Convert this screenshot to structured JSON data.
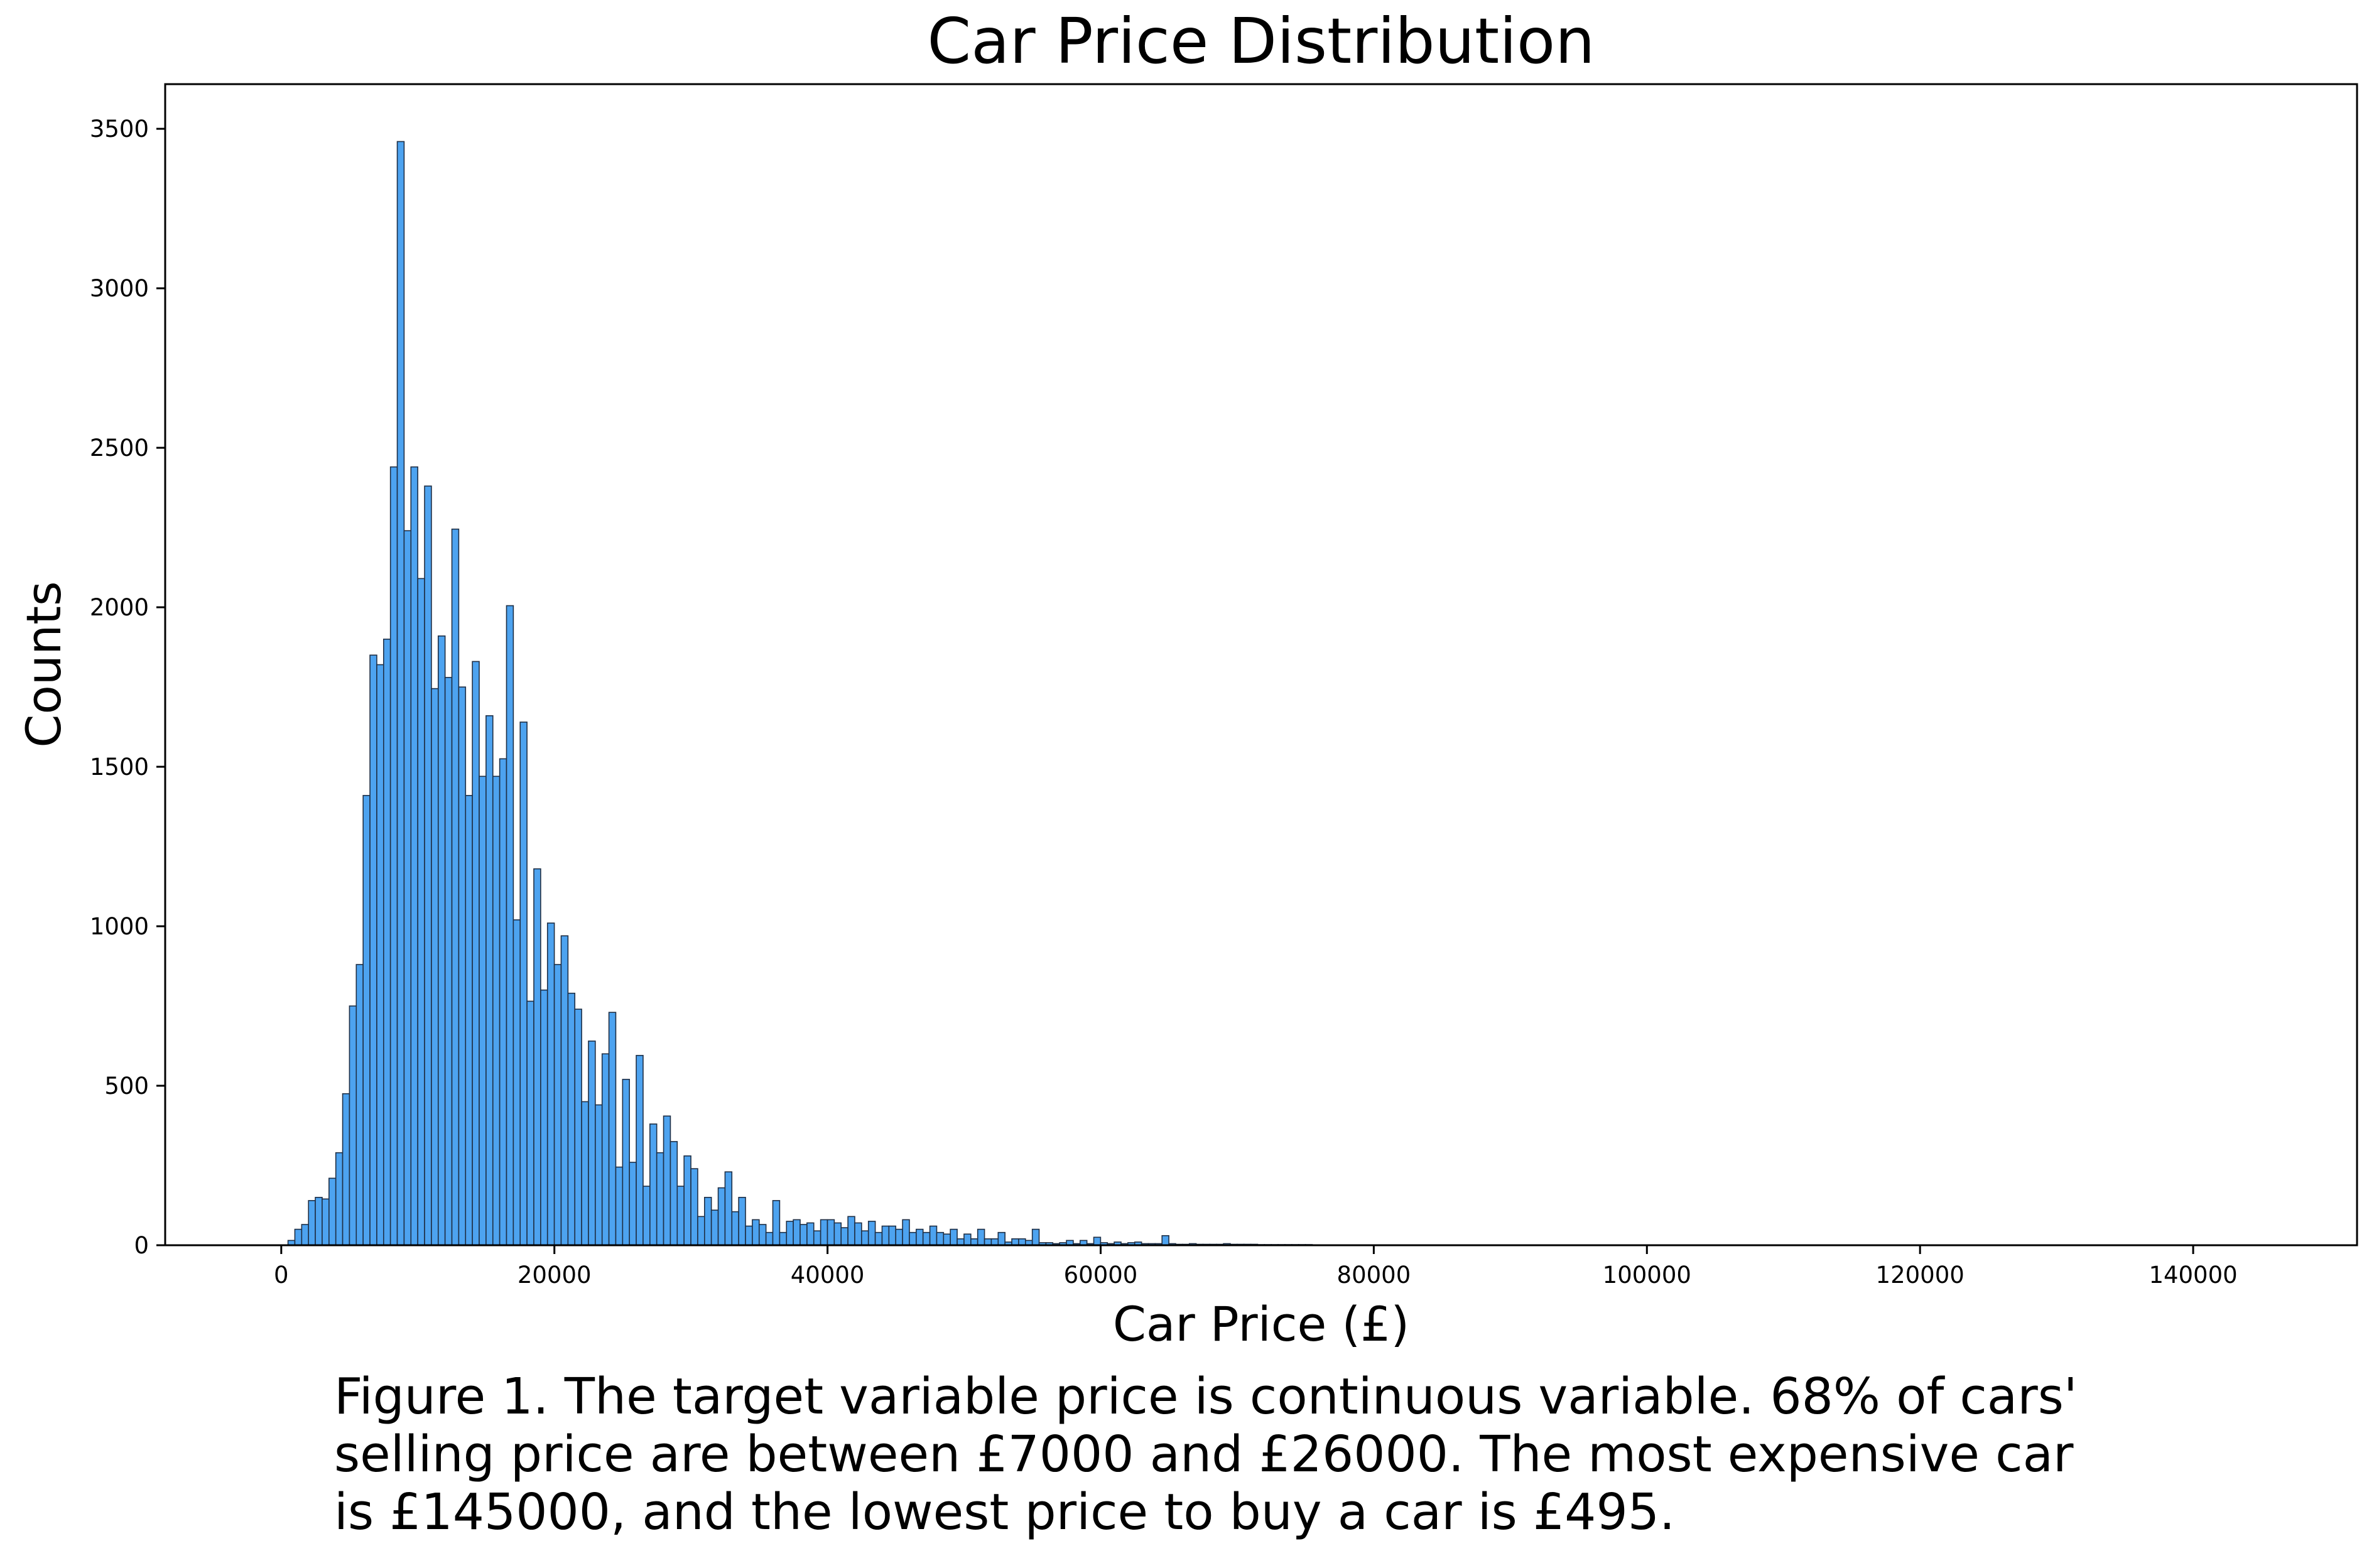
{
  "chart_data": {
    "type": "bar",
    "title": "Car Price Distribution",
    "xlabel": "Car Price (£)",
    "ylabel": "Counts",
    "xlim": [
      -8500,
      152000
    ],
    "ylim": [
      0,
      3640
    ],
    "xticks": [
      0,
      20000,
      40000,
      60000,
      80000,
      100000,
      120000,
      140000
    ],
    "xtick_labels": [
      "0",
      "20000",
      "40000",
      "60000",
      "80000",
      "100000",
      "120000",
      "140000"
    ],
    "yticks": [
      0,
      500,
      1000,
      1500,
      2000,
      2500,
      3000,
      3500
    ],
    "ytick_labels": [
      "0",
      "500",
      "1000",
      "1500",
      "2000",
      "2500",
      "3000",
      "3500"
    ],
    "grid": false,
    "legend": "none",
    "bar_fill": "#4DA3F0",
    "bar_edge": "#1F2F45",
    "bin_width": 500,
    "bin_start": 495,
    "counts": [
      15,
      50,
      65,
      140,
      150,
      145,
      210,
      290,
      475,
      750,
      880,
      1410,
      1850,
      1820,
      1900,
      2440,
      3460,
      2240,
      2440,
      2090,
      2380,
      1745,
      1910,
      1780,
      2245,
      1750,
      1410,
      1830,
      1470,
      1660,
      1470,
      1525,
      2005,
      1020,
      1640,
      765,
      1180,
      800,
      1010,
      880,
      970,
      790,
      740,
      450,
      640,
      440,
      600,
      730,
      245,
      520,
      260,
      595,
      185,
      380,
      290,
      405,
      325,
      185,
      280,
      240,
      90,
      150,
      110,
      180,
      230,
      105,
      150,
      60,
      80,
      65,
      40,
      140,
      40,
      75,
      80,
      65,
      70,
      45,
      80,
      80,
      70,
      55,
      90,
      70,
      45,
      75,
      40,
      60,
      60,
      50,
      80,
      40,
      50,
      40,
      60,
      40,
      35,
      50,
      20,
      35,
      20,
      50,
      20,
      20,
      40,
      10,
      20,
      20,
      15,
      50,
      8,
      8,
      5,
      8,
      15,
      5,
      15,
      5,
      25,
      8,
      5,
      10,
      5,
      8,
      10,
      5,
      5,
      5,
      30,
      5,
      3,
      3,
      5,
      3,
      3,
      3,
      3,
      5,
      3,
      3,
      3,
      3,
      2,
      2,
      2,
      2,
      2,
      2,
      2,
      2,
      1,
      1,
      1,
      1,
      1,
      1,
      1,
      1,
      1,
      1,
      1,
      1,
      1,
      1,
      1,
      1,
      1,
      1,
      1,
      1,
      0,
      0,
      1,
      0,
      0,
      1,
      0,
      0,
      1,
      0,
      0,
      0,
      1,
      0,
      0,
      0,
      1,
      0,
      0,
      0,
      0,
      1,
      0,
      0,
      0,
      0,
      0,
      1,
      0,
      0,
      0,
      0,
      0,
      0,
      1,
      0,
      0,
      0,
      0,
      0,
      0,
      0,
      1,
      0,
      0,
      0,
      0,
      0,
      0,
      0,
      0,
      1,
      0,
      0,
      0,
      0,
      0,
      0,
      0,
      0,
      0,
      1,
      0,
      0,
      0,
      0,
      0,
      0,
      0,
      0,
      0,
      0,
      0,
      1,
      0,
      0,
      0,
      0,
      0,
      0,
      0,
      0,
      0,
      0,
      0,
      0,
      1,
      0,
      0,
      0,
      0,
      0,
      0,
      0,
      0,
      0,
      0,
      0,
      0,
      0,
      0,
      1,
      0,
      0,
      0,
      0,
      0,
      0,
      0,
      0,
      0,
      0,
      0,
      0,
      0,
      0,
      0,
      1
    ]
  },
  "caption": {
    "line1": "Figure 1. The target variable price is continuous variable. 68% of cars'",
    "line2": "selling price are between £7000 and £26000. The most expensive car",
    "line3": "is £145000, and the lowest price to buy a car is £495."
  }
}
